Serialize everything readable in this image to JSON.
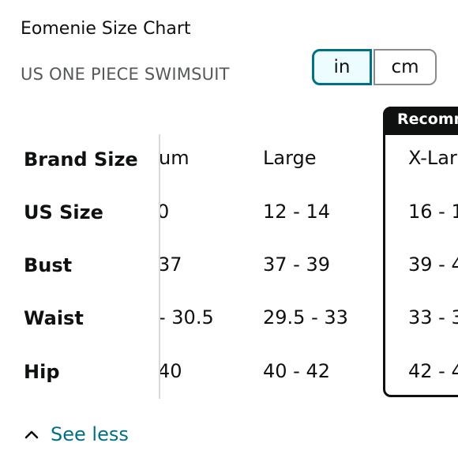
{
  "header": {
    "title": "Eomenie Size Chart",
    "subtitle": "US ONE PIECE SWIMSUIT"
  },
  "unit_toggle": {
    "options": [
      "in",
      "cm"
    ],
    "selected": "in"
  },
  "table": {
    "row_labels": [
      "Brand Size",
      "US Size",
      "Bust",
      "Waist",
      "Hip"
    ],
    "columns": [
      {
        "values": [
          "um",
          "0",
          "37",
          "- 30.5",
          "40"
        ]
      },
      {
        "values": [
          "Large",
          "12 - 14",
          "37 - 39",
          "29.5 - 33",
          "40 - 42"
        ]
      },
      {
        "values": [
          "X-Lar",
          "16 - 1",
          "39 - 4",
          "33 - 3",
          "42 - 4"
        ],
        "recommended": true
      }
    ],
    "recommended_label": "Recomm"
  },
  "footer": {
    "see_less_label": "See less",
    "icon": "chevron-up-icon"
  },
  "colors": {
    "accent": "#007185",
    "toggle_active_bg": "#edfdff",
    "text": "#0f1111",
    "muted": "#565959"
  }
}
